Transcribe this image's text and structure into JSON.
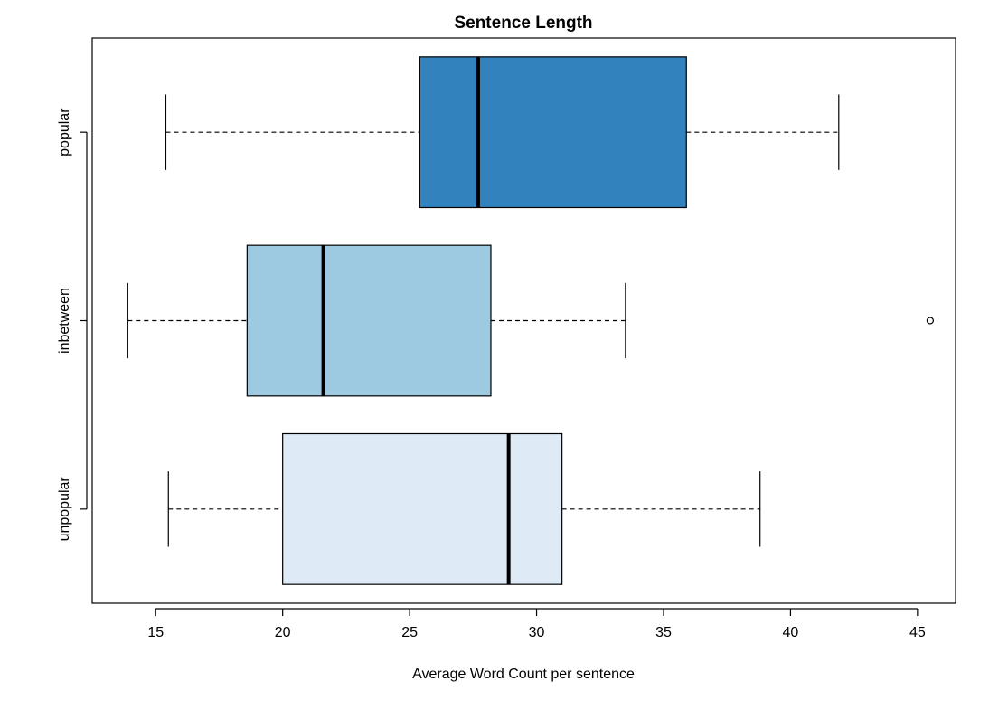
{
  "chart_data": {
    "type": "boxplot",
    "orientation": "horizontal",
    "title": "Sentence Length",
    "xlabel": "Average Word Count per sentence",
    "ylabel": "",
    "xlim": [
      12.5,
      46.5
    ],
    "xticks": [
      15,
      20,
      25,
      30,
      35,
      40,
      45
    ],
    "grid": false,
    "categories": [
      "unpopular",
      "inbetween",
      "popular"
    ],
    "series": [
      {
        "name": "unpopular",
        "whisker_low": 15.5,
        "q1": 20.0,
        "median": 28.9,
        "q3": 31.0,
        "whisker_high": 38.8,
        "outliers": [],
        "color": "#deebf7"
      },
      {
        "name": "inbetween",
        "whisker_low": 13.9,
        "q1": 18.6,
        "median": 21.6,
        "q3": 28.2,
        "whisker_high": 33.5,
        "outliers": [
          45.5
        ],
        "color": "#9ecae1"
      },
      {
        "name": "popular",
        "whisker_low": 15.4,
        "q1": 25.4,
        "median": 27.7,
        "q3": 35.9,
        "whisker_high": 41.9,
        "outliers": [],
        "color": "#3182bd"
      }
    ]
  }
}
